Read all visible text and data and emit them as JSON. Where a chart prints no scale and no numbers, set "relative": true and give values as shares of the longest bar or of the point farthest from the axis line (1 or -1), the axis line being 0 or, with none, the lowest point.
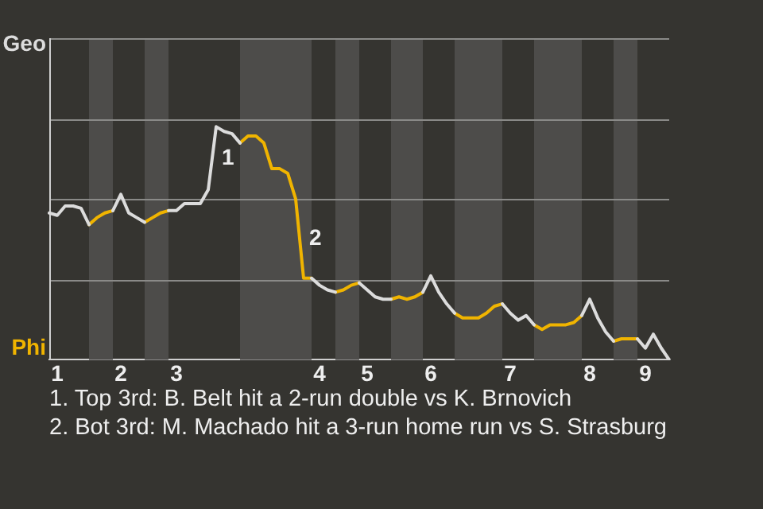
{
  "chart_data": {
    "type": "line",
    "relative": true,
    "annotations": [
      "Geo",
      "Phi",
      "1",
      "2",
      "1. Top 3rd: B. Belt hit a 2-run double vs K. Brnovich",
      "2. Bot 3rd: M. Machado hit a 3-run home run vs S. Strasburg"
    ],
    "categories": [
      null,
      "1",
      null,
      null,
      null,
      null,
      null,
      null,
      null,
      "2",
      null,
      null,
      null,
      null,
      null,
      null,
      "3",
      null,
      null,
      null,
      null,
      null,
      null,
      null,
      null,
      null,
      null,
      null,
      null,
      null,
      null,
      null,
      null,
      null,
      "4",
      null,
      null,
      null,
      null,
      null,
      "5",
      null,
      null,
      null,
      null,
      null,
      null,
      null,
      "6",
      null,
      null,
      null,
      null,
      null,
      null,
      null,
      null,
      null,
      "7",
      null,
      null,
      null,
      null,
      null,
      null,
      null,
      null,
      null,
      "8",
      null,
      null,
      null,
      null,
      null,
      null,
      "9",
      null,
      null,
      null
    ],
    "ref_lines": [
      {
        "axis": "y",
        "value": 0.34,
        "color": "#8a8a88"
      },
      {
        "axis": "y",
        "value": 0.69,
        "color": "#8a8a88"
      },
      {
        "axis": "y",
        "value": 1.03,
        "color": "#8a8a88"
      }
    ],
    "legend": false,
    "marker": "none",
    "line_style": "solid",
    "series": [
      {
        "color": "#dcdcdc",
        "values": [
          0.63,
          0.62,
          0.66,
          0.66,
          0.65,
          0.58,
          null,
          null,
          0.64,
          0.71,
          0.63,
          0.61,
          0.59,
          null,
          null,
          0.64,
          0.64,
          0.67,
          0.67,
          0.67,
          0.73,
          1,
          0.98,
          0.97,
          0.93,
          null,
          null,
          null,
          null,
          null,
          null,
          null,
          null,
          0.35,
          0.32,
          0.3,
          0.29,
          null,
          null,
          0.33,
          0.3,
          0.27,
          0.26,
          0.26,
          null,
          null,
          null,
          0.29,
          0.36,
          0.29,
          0.24,
          0.2,
          null,
          null,
          null,
          null,
          null,
          0.24,
          0.2,
          0.17,
          0.19,
          0.15,
          null,
          null,
          null,
          null,
          null,
          0.19,
          0.26,
          0.18,
          0.12,
          0.08,
          null,
          null,
          0.09,
          0.05,
          0.11,
          0.05,
          0
        ]
      },
      {
        "color": "#f0b400",
        "values": [
          null,
          null,
          null,
          null,
          null,
          0.58,
          0.61,
          0.63,
          0.64,
          null,
          null,
          null,
          0.59,
          0.61,
          0.63,
          0.64,
          null,
          null,
          null,
          null,
          null,
          null,
          null,
          null,
          0.93,
          0.96,
          0.96,
          0.93,
          0.82,
          0.82,
          0.8,
          0.69,
          0.35,
          0.35,
          null,
          null,
          0.29,
          0.3,
          0.32,
          0.33,
          null,
          null,
          null,
          0.26,
          0.27,
          0.26,
          0.27,
          0.29,
          null,
          null,
          null,
          0.2,
          0.18,
          0.18,
          0.18,
          0.2,
          0.23,
          0.24,
          null,
          null,
          null,
          0.15,
          0.13,
          0.15,
          0.15,
          0.15,
          0.16,
          0.19,
          null,
          null,
          null,
          0.08,
          0.09,
          0.09,
          0.09,
          null,
          null,
          null,
          null
        ]
      }
    ]
  }
}
